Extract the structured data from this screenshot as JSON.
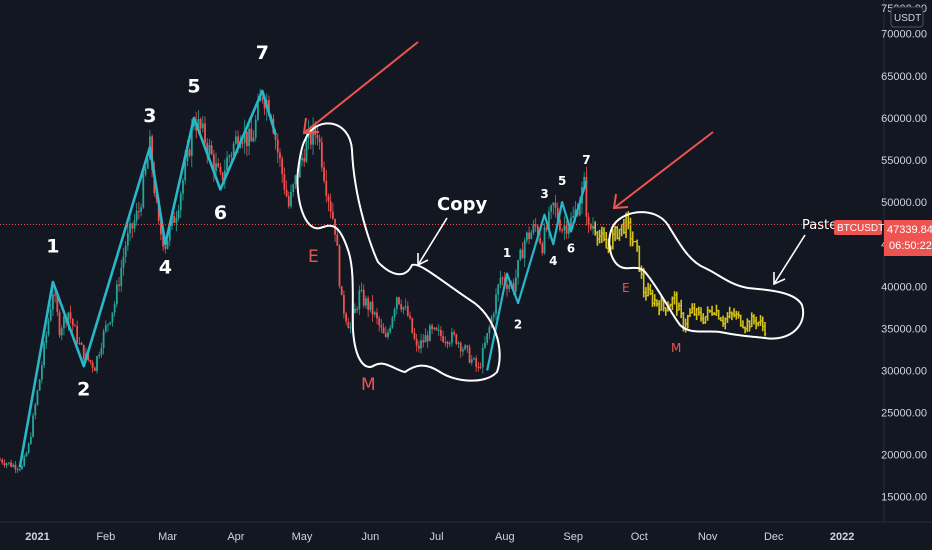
{
  "chart_data": {
    "type": "candlestick",
    "symbol": "BTCUSDT",
    "currency": "USDT",
    "current_price": "47339.84",
    "countdown": "06:50:22",
    "y_axis": {
      "min": 12000,
      "max": 74000,
      "ticks": [
        15000,
        20000,
        25000,
        30000,
        35000,
        40000,
        45000,
        50000,
        55000,
        60000,
        65000,
        70000
      ],
      "tick_labels": [
        "15000.00",
        "20000.00",
        "25000.00",
        "30000.00",
        "35000.00",
        "40000.00",
        "45000.00",
        "50000.00",
        "55000.00",
        "60000.00",
        "65000.00",
        "70000.00"
      ],
      "top_partial_label": "75000.00"
    },
    "x_axis": {
      "start": "2020-12-15",
      "end": "2022-01-20",
      "tick_labels": [
        {
          "date": "2021-01-01",
          "label": "2021"
        },
        {
          "date": "2021-02-01",
          "label": "Feb"
        },
        {
          "date": "2021-03-01",
          "label": "Mar"
        },
        {
          "date": "2021-04-01",
          "label": "Apr"
        },
        {
          "date": "2021-05-01",
          "label": "May"
        },
        {
          "date": "2021-06-01",
          "label": "Jun"
        },
        {
          "date": "2021-07-01",
          "label": "Jul"
        },
        {
          "date": "2021-08-01",
          "label": "Aug"
        },
        {
          "date": "2021-09-01",
          "label": "Sep"
        },
        {
          "date": "2021-10-01",
          "label": "Oct"
        },
        {
          "date": "2021-11-01",
          "label": "Nov"
        },
        {
          "date": "2021-12-01",
          "label": "Dec"
        },
        {
          "date": "2022-01-01",
          "label": "2022"
        }
      ]
    },
    "price_path": [
      [
        "2020-12-15",
        19400
      ],
      [
        "2020-12-20",
        18800
      ],
      [
        "2020-12-25",
        18500
      ],
      [
        "2020-12-28",
        21000
      ],
      [
        "2021-01-02",
        29000
      ],
      [
        "2021-01-08",
        39500
      ],
      [
        "2021-01-11",
        35000
      ],
      [
        "2021-01-15",
        37000
      ],
      [
        "2021-01-20",
        33000
      ],
      [
        "2021-01-23",
        31500
      ],
      [
        "2021-01-27",
        30500
      ],
      [
        "2021-01-30",
        33500
      ],
      [
        "2021-02-05",
        38000
      ],
      [
        "2021-02-10",
        45000
      ],
      [
        "2021-02-16",
        49000
      ],
      [
        "2021-02-21",
        56500
      ],
      [
        "2021-02-25",
        47000
      ],
      [
        "2021-02-28",
        45000
      ],
      [
        "2021-03-05",
        49000
      ],
      [
        "2021-03-10",
        55000
      ],
      [
        "2021-03-13",
        60000
      ],
      [
        "2021-03-18",
        57500
      ],
      [
        "2021-03-25",
        52500
      ],
      [
        "2021-03-28",
        55000
      ],
      [
        "2021-04-03",
        58500
      ],
      [
        "2021-04-08",
        57000
      ],
      [
        "2021-04-13",
        63000
      ],
      [
        "2021-04-17",
        61000
      ],
      [
        "2021-04-20",
        56000
      ],
      [
        "2021-04-25",
        49500
      ],
      [
        "2021-04-29",
        53500
      ],
      [
        "2021-05-03",
        57000
      ],
      [
        "2021-05-08",
        58500
      ],
      [
        "2021-05-12",
        52000
      ],
      [
        "2021-05-16",
        47000
      ],
      [
        "2021-05-19",
        38000
      ],
      [
        "2021-05-23",
        35000
      ],
      [
        "2021-05-27",
        39000
      ],
      [
        "2021-06-02",
        37000
      ],
      [
        "2021-06-08",
        33500
      ],
      [
        "2021-06-13",
        39000
      ],
      [
        "2021-06-18",
        36500
      ],
      [
        "2021-06-22",
        32500
      ],
      [
        "2021-06-28",
        34500
      ],
      [
        "2021-07-05",
        34000
      ],
      [
        "2021-07-10",
        33800
      ],
      [
        "2021-07-15",
        32000
      ],
      [
        "2021-07-20",
        30000
      ],
      [
        "2021-07-25",
        35000
      ],
      [
        "2021-07-30",
        41000
      ],
      [
        "2021-08-05",
        40000
      ],
      [
        "2021-08-10",
        45500
      ],
      [
        "2021-08-15",
        47000
      ],
      [
        "2021-08-18",
        45000
      ],
      [
        "2021-08-23",
        49500
      ],
      [
        "2021-08-27",
        47000
      ],
      [
        "2021-09-01",
        48000
      ],
      [
        "2021-09-06",
        52000
      ],
      [
        "2021-09-08",
        46500
      ],
      [
        "2021-09-10",
        47340
      ]
    ],
    "projection_path": [
      [
        "2021-09-11",
        47000
      ],
      [
        "2021-09-16",
        44500
      ],
      [
        "2021-09-21",
        46500
      ],
      [
        "2021-09-25",
        47500
      ],
      [
        "2021-09-30",
        44000
      ],
      [
        "2021-10-03",
        39500
      ],
      [
        "2021-10-07",
        38500
      ],
      [
        "2021-10-12",
        37500
      ],
      [
        "2021-10-17",
        38500
      ],
      [
        "2021-10-21",
        35500
      ],
      [
        "2021-10-25",
        37000
      ],
      [
        "2021-10-30",
        36200
      ],
      [
        "2021-11-04",
        37400
      ],
      [
        "2021-11-08",
        36000
      ],
      [
        "2021-11-13",
        36600
      ],
      [
        "2021-11-18",
        35500
      ],
      [
        "2021-11-23",
        36000
      ],
      [
        "2021-11-27",
        35000
      ]
    ],
    "wave_points_left": [
      [
        "2020-12-24",
        18500
      ],
      [
        "2021-01-08",
        40500
      ],
      [
        "2021-01-22",
        30500
      ],
      [
        "2021-02-21",
        56500
      ],
      [
        "2021-02-28",
        45000
      ],
      [
        "2021-03-13",
        60000
      ],
      [
        "2021-03-25",
        51500
      ],
      [
        "2021-04-13",
        63200
      ],
      [
        "2021-04-19",
        58000
      ]
    ],
    "wave_labels_left": [
      {
        "label": "1",
        "date": "2021-01-08",
        "y": 44000
      },
      {
        "label": "2",
        "date": "2021-01-22",
        "y": 27000
      },
      {
        "label": "3",
        "date": "2021-02-21",
        "y": 59500
      },
      {
        "label": "4",
        "date": "2021-02-28",
        "y": 41500
      },
      {
        "label": "5",
        "date": "2021-03-13",
        "y": 63000
      },
      {
        "label": "6",
        "date": "2021-03-25",
        "y": 48000
      },
      {
        "label": "7",
        "date": "2021-04-13",
        "y": 67000
      }
    ],
    "wave_points_right": [
      [
        "2021-07-24",
        30000
      ],
      [
        "2021-08-02",
        41500
      ],
      [
        "2021-08-07",
        38000
      ],
      [
        "2021-08-19",
        48500
      ],
      [
        "2021-08-23",
        45000
      ],
      [
        "2021-08-27",
        50000
      ],
      [
        "2021-08-31",
        46500
      ],
      [
        "2021-09-07",
        52500
      ]
    ],
    "wave_labels_right": [
      {
        "label": "1",
        "date": "2021-08-02",
        "y": 43500
      },
      {
        "label": "2",
        "date": "2021-08-07",
        "y": 35000
      },
      {
        "label": "3",
        "date": "2021-08-19",
        "y": 50500
      },
      {
        "label": "4",
        "date": "2021-08-23",
        "y": 42500
      },
      {
        "label": "5",
        "date": "2021-08-27",
        "y": 52000
      },
      {
        "label": "6",
        "date": "2021-08-31",
        "y": 44000
      },
      {
        "label": "7",
        "date": "2021-09-07",
        "y": 54500
      }
    ],
    "annotations": {
      "copy": "Copy",
      "paste": "Paste",
      "e_left": "E",
      "m_left": "M",
      "e_right": "E",
      "m_right": "M"
    },
    "colors": {
      "background": "#131722",
      "up": "#26a69a",
      "down": "#ef5350",
      "wave": "#29b6c8",
      "projection": "#d4c21a",
      "arrow": "#ef5350",
      "outline": "#ffffff",
      "price_line": "#ef5350",
      "axis_text": "#d1d4dc"
    }
  }
}
